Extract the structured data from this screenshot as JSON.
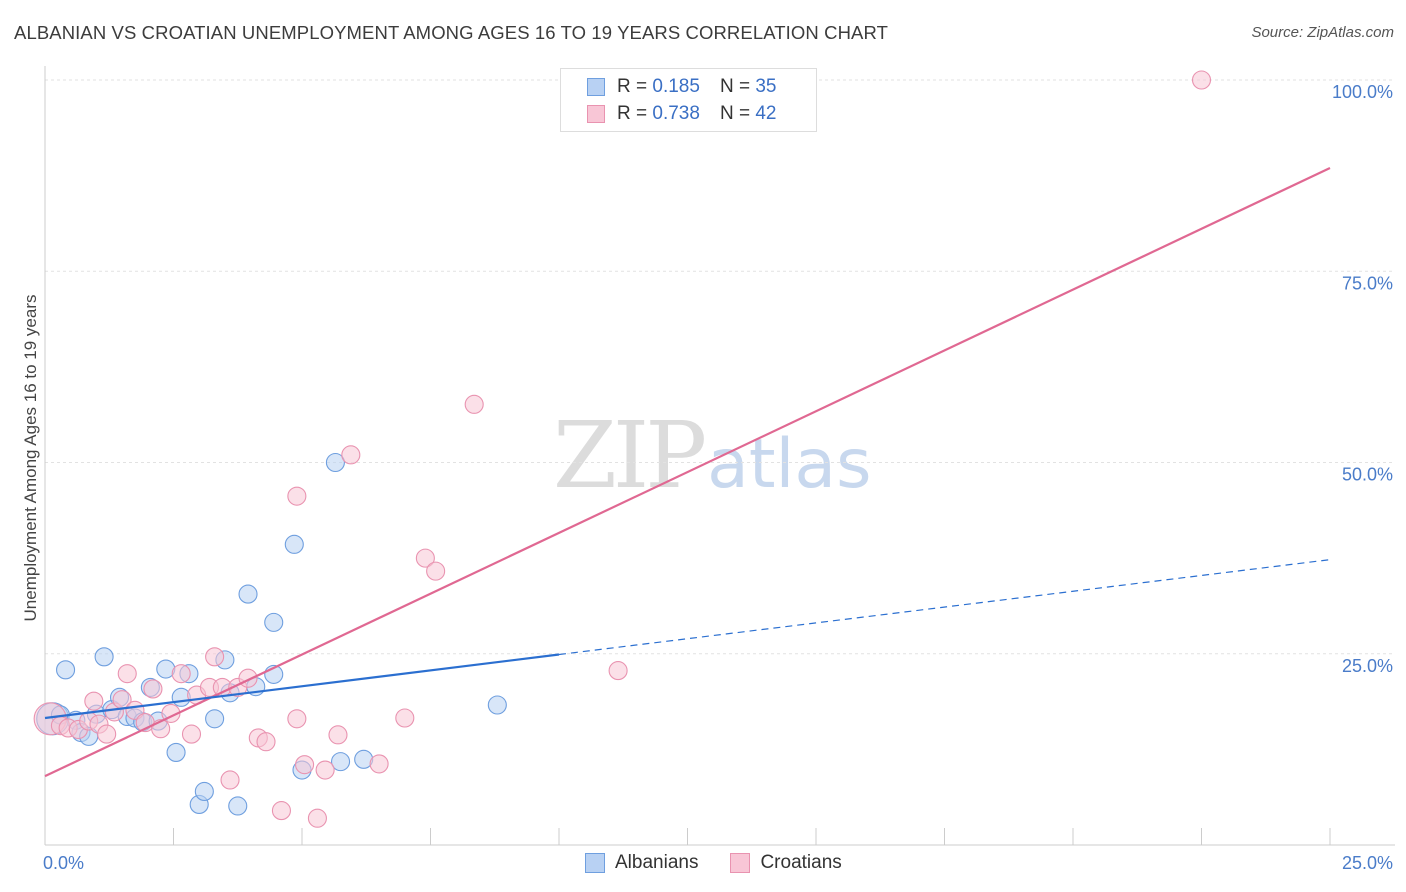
{
  "header": {
    "title": "ALBANIAN VS CROATIAN UNEMPLOYMENT AMONG AGES 16 TO 19 YEARS CORRELATION CHART",
    "source": "Source: ZipAtlas.com"
  },
  "legend": {
    "rows": [
      {
        "r_label": "R =",
        "r_value": "0.185",
        "n_label": "N =",
        "n_value": "35"
      },
      {
        "r_label": "R =",
        "r_value": "0.738",
        "n_label": "N =",
        "n_value": "42"
      }
    ]
  },
  "watermark": {
    "zip": "ZIP",
    "atlas": "atlas"
  },
  "colors": {
    "albanian_fill": "#b8d1f3",
    "albanian_stroke": "#6f9fdf",
    "albanian_line": "#2b6fd0",
    "croatian_fill": "#f8c6d6",
    "croatian_stroke": "#e993b0",
    "croatian_line": "#e06892"
  },
  "chart_data": {
    "type": "scatter",
    "title": "ALBANIAN VS CROATIAN UNEMPLOYMENT AMONG AGES 16 TO 19 YEARS CORRELATION CHART",
    "xlabel": "",
    "ylabel": "Unemployment Among Ages 16 to 19 years",
    "xlim": [
      0,
      25
    ],
    "ylim": [
      0,
      100
    ],
    "y_ticks": [
      {
        "value": 25,
        "label": "25.0%"
      },
      {
        "value": 50,
        "label": "50.0%"
      },
      {
        "value": 75,
        "label": "75.0%"
      },
      {
        "value": 100,
        "label": "100.0%"
      }
    ],
    "x_tick_labels": [
      {
        "value": 0,
        "label": "0.0%"
      },
      {
        "value": 25,
        "label": "25.0%"
      }
    ],
    "grid": true,
    "legend_position": "top-center",
    "series": [
      {
        "name": "Albanians",
        "r": 0.185,
        "n": 35,
        "points": [
          [
            0.15,
            16.5
          ],
          [
            0.3,
            17.0
          ],
          [
            0.4,
            22.9
          ],
          [
            0.6,
            16.3
          ],
          [
            0.7,
            14.7
          ],
          [
            0.85,
            14.2
          ],
          [
            1.0,
            17.1
          ],
          [
            1.15,
            24.6
          ],
          [
            1.3,
            17.7
          ],
          [
            1.45,
            19.3
          ],
          [
            1.6,
            16.8
          ],
          [
            1.75,
            16.6
          ],
          [
            1.9,
            16.1
          ],
          [
            2.05,
            20.6
          ],
          [
            2.2,
            16.2
          ],
          [
            2.35,
            23.0
          ],
          [
            2.55,
            12.1
          ],
          [
            2.65,
            19.3
          ],
          [
            2.8,
            22.4
          ],
          [
            3.0,
            5.3
          ],
          [
            3.1,
            7.0
          ],
          [
            3.3,
            16.5
          ],
          [
            3.5,
            24.2
          ],
          [
            3.6,
            19.9
          ],
          [
            3.75,
            5.1
          ],
          [
            3.95,
            32.8
          ],
          [
            4.1,
            20.7
          ],
          [
            4.45,
            22.3
          ],
          [
            4.45,
            29.1
          ],
          [
            4.85,
            39.3
          ],
          [
            5.0,
            9.8
          ],
          [
            5.65,
            50.0
          ],
          [
            5.75,
            10.9
          ],
          [
            6.2,
            11.2
          ],
          [
            8.8,
            18.3
          ]
        ],
        "trend_solid": {
          "x": [
            0,
            10
          ],
          "y": [
            16.6,
            24.9
          ]
        },
        "trend_dashed": {
          "x": [
            10,
            25
          ],
          "y": [
            24.9,
            37.3
          ]
        }
      },
      {
        "name": "Croatians",
        "r": 0.738,
        "n": 42,
        "points": [
          [
            0.1,
            16.5
          ],
          [
            0.3,
            15.6
          ],
          [
            0.45,
            15.3
          ],
          [
            0.65,
            15.1
          ],
          [
            0.85,
            16.2
          ],
          [
            0.95,
            18.8
          ],
          [
            1.05,
            15.8
          ],
          [
            1.2,
            14.5
          ],
          [
            1.35,
            17.4
          ],
          [
            1.5,
            19.0
          ],
          [
            1.6,
            22.4
          ],
          [
            1.75,
            17.6
          ],
          [
            1.95,
            16.0
          ],
          [
            2.1,
            20.4
          ],
          [
            2.25,
            15.2
          ],
          [
            2.45,
            17.2
          ],
          [
            2.65,
            22.4
          ],
          [
            2.85,
            14.5
          ],
          [
            2.95,
            19.6
          ],
          [
            3.2,
            20.6
          ],
          [
            3.3,
            24.6
          ],
          [
            3.45,
            20.6
          ],
          [
            3.6,
            8.5
          ],
          [
            3.75,
            20.6
          ],
          [
            3.95,
            21.8
          ],
          [
            4.15,
            14.0
          ],
          [
            4.3,
            13.5
          ],
          [
            4.6,
            4.5
          ],
          [
            4.9,
            16.5
          ],
          [
            4.9,
            45.6
          ],
          [
            5.05,
            10.5
          ],
          [
            5.3,
            3.5
          ],
          [
            5.45,
            9.8
          ],
          [
            5.7,
            14.4
          ],
          [
            5.95,
            51.0
          ],
          [
            6.5,
            10.6
          ],
          [
            7.0,
            16.6
          ],
          [
            7.4,
            37.5
          ],
          [
            7.6,
            35.8
          ],
          [
            8.35,
            57.6
          ],
          [
            11.15,
            22.8
          ],
          [
            22.5,
            100.0
          ]
        ],
        "trend_solid": {
          "x": [
            0,
            25
          ],
          "y": [
            9.0,
            88.5
          ]
        }
      }
    ]
  },
  "bottom_legend": {
    "items": [
      {
        "label": "Albanians"
      },
      {
        "label": "Croatians"
      }
    ]
  }
}
